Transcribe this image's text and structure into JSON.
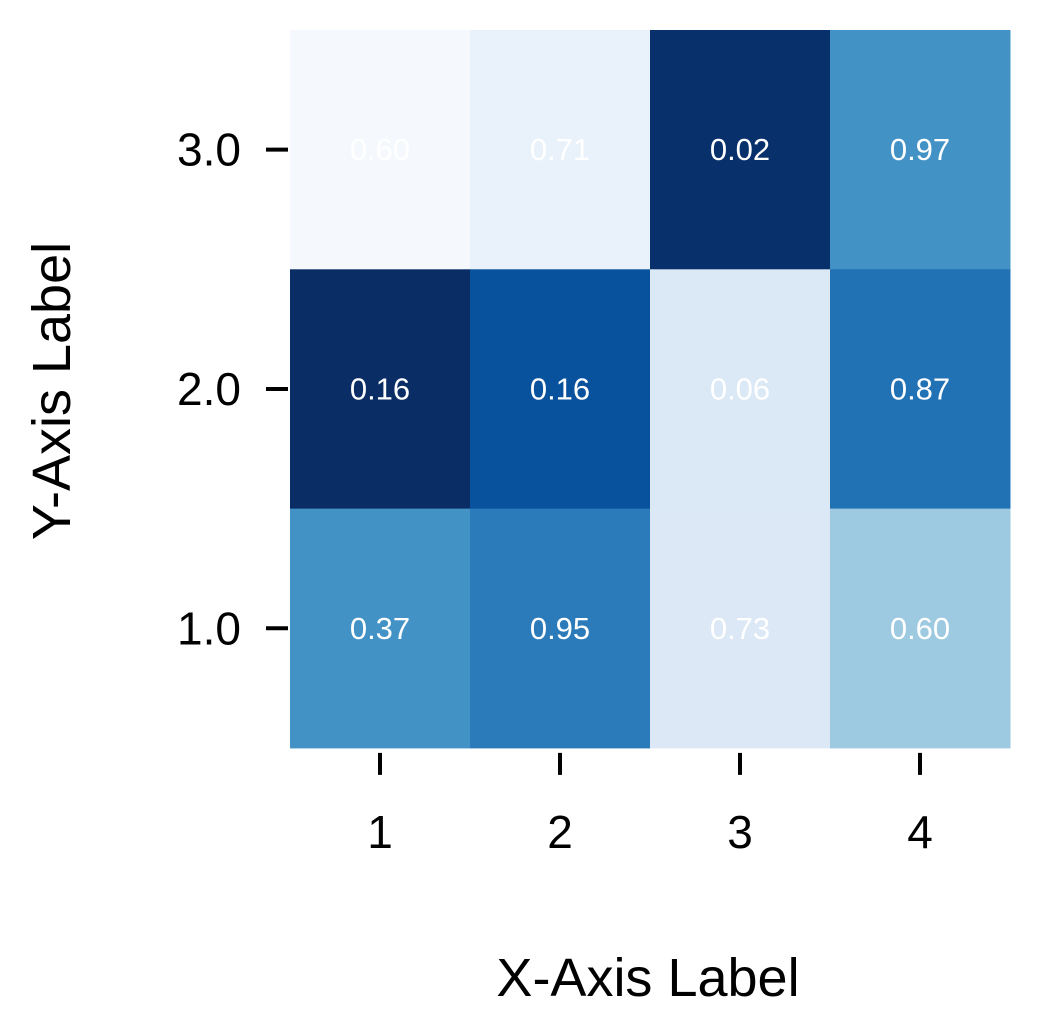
{
  "chart_data": {
    "type": "heatmap",
    "title": "",
    "xlabel": "X-Axis Label",
    "ylabel": "Y-Axis Label",
    "x_categories": [
      "1",
      "2",
      "3",
      "4"
    ],
    "y_categories": [
      "1.0",
      "2.0",
      "3.0"
    ],
    "rows": [
      {
        "y": "3.0",
        "labels": [
          "0.60",
          "0.71",
          "0.02",
          "0.97"
        ],
        "colors": [
          "#f5f9fd",
          "#e9f2fa",
          "#08306b",
          "#4292c6"
        ]
      },
      {
        "y": "2.0",
        "labels": [
          "0.16",
          "0.16",
          "0.06",
          "0.87"
        ],
        "colors": [
          "#0a2d66",
          "#08519c",
          "#dbe9f6",
          "#2171b5"
        ]
      },
      {
        "y": "1.0",
        "labels": [
          "0.37",
          "0.95",
          "0.73",
          "0.60"
        ],
        "colors": [
          "#4292c6",
          "#2b7bba",
          "#dce8f6",
          "#9ecae1"
        ]
      }
    ],
    "annotation_color": "#ffffff",
    "grid": false,
    "colorbar": false
  }
}
